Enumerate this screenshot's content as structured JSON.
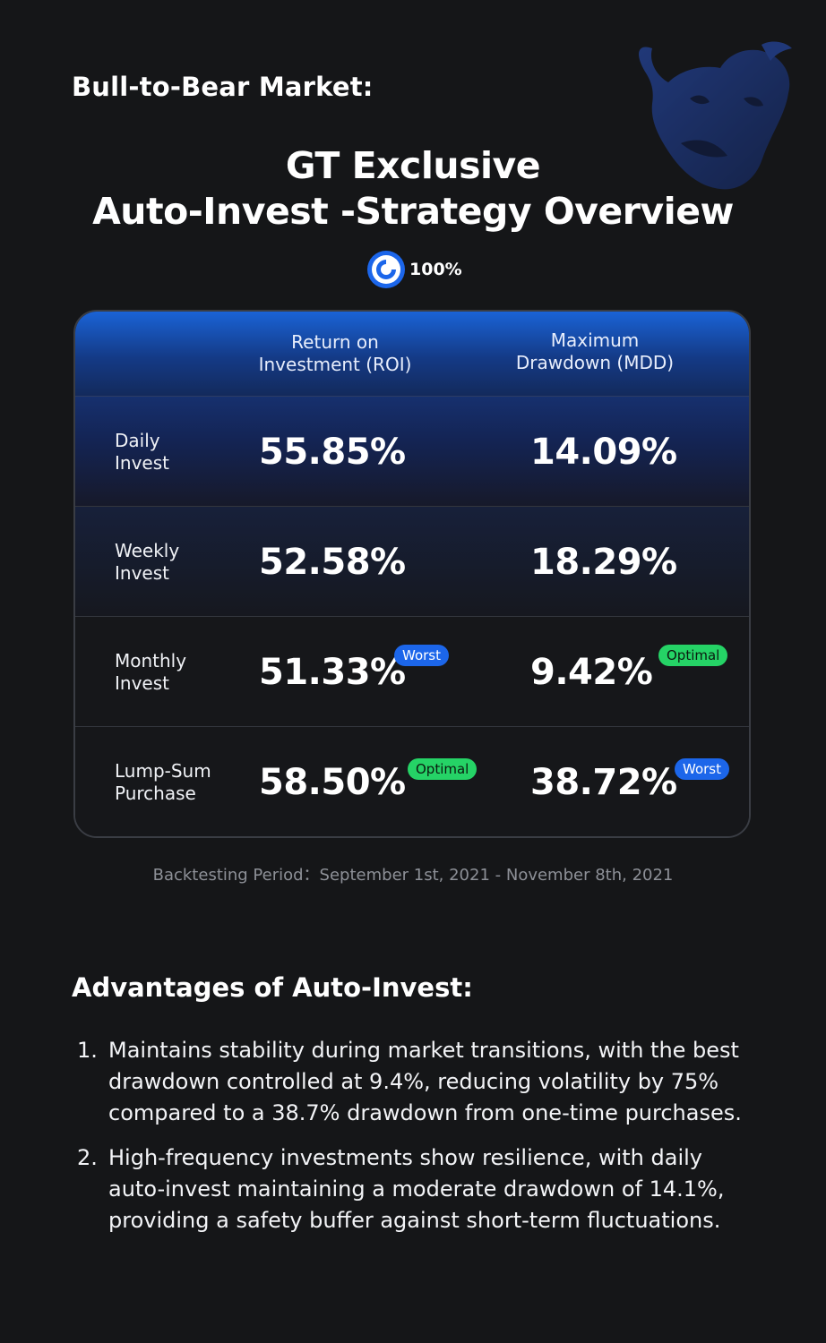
{
  "header": {
    "kicker": "Bull-to-Bear Market:",
    "title_line1": "GT Exclusive",
    "title_line2": "Auto-Invest -Strategy Overview",
    "score_label": "100%"
  },
  "table": {
    "col_roi": "Return on\nInvestment (ROI)",
    "col_mdd": "Maximum\nDrawdown (MDD)",
    "rows": [
      {
        "label": "Daily\nInvest",
        "roi": "55.85%",
        "mdd": "14.09%",
        "roi_badge": "",
        "mdd_badge": ""
      },
      {
        "label": "Weekly\nInvest",
        "roi": "52.58%",
        "mdd": "18.29%",
        "roi_badge": "",
        "mdd_badge": ""
      },
      {
        "label": "Monthly\nInvest",
        "roi": "51.33%",
        "mdd": "9.42%",
        "roi_badge": "Worst",
        "mdd_badge": "Optimal"
      },
      {
        "label": "Lump-Sum\nPurchase",
        "roi": "58.50%",
        "mdd": "38.72%",
        "roi_badge": "Optimal",
        "mdd_badge": "Worst"
      }
    ]
  },
  "period": "Backtesting Period：September 1st, 2021 - November 8th, 2021",
  "advantages": {
    "title": "Advantages of Auto-Invest:",
    "items": [
      {
        "num": "1.",
        "text": "Maintains stability during market transitions, with the best drawdown controlled at 9.4%, reducing volatility by 75% compared to a 38.7% drawdown from one-time purchases."
      },
      {
        "num": "2.",
        "text": "High-frequency investments show resilience, with daily auto-invest maintaining a moderate drawdown of 14.1%, providing a safety buffer against short-term fluctuations."
      }
    ]
  },
  "colors": {
    "background": "#151618",
    "accent_blue": "#1c66ea",
    "optimal_green": "#25d366",
    "muted_text": "#8d9097"
  },
  "icons": {
    "decoration": "bull-bear-icon",
    "score": "gt-score-icon"
  }
}
